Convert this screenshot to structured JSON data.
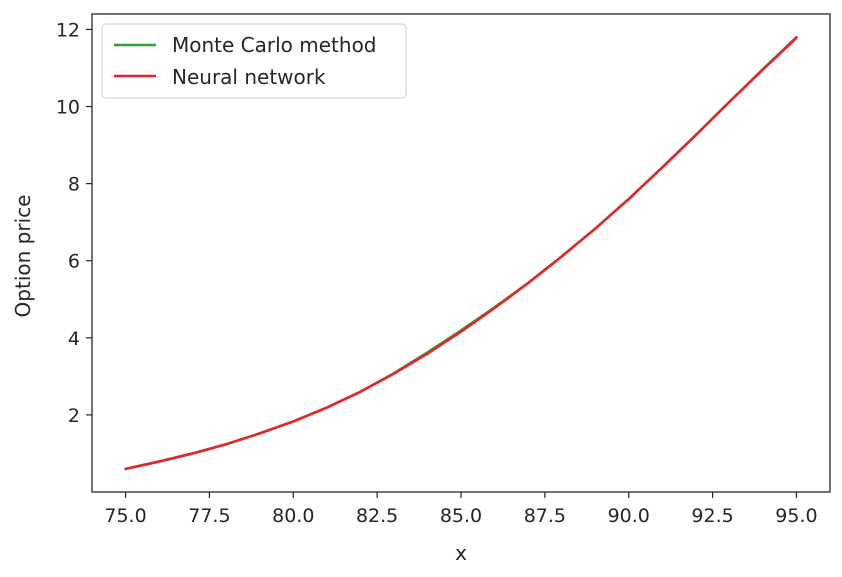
{
  "chart_data": {
    "type": "line",
    "title": "",
    "xlabel": "x",
    "ylabel": "Option price",
    "xlim": [
      74.0,
      96.0
    ],
    "ylim": [
      0.0,
      12.4
    ],
    "xticks": [
      75.0,
      77.5,
      80.0,
      82.5,
      85.0,
      87.5,
      90.0,
      92.5,
      95.0
    ],
    "xtick_labels": [
      "75.0",
      "77.5",
      "80.0",
      "82.5",
      "85.0",
      "87.5",
      "90.0",
      "92.5",
      "95.0"
    ],
    "yticks": [
      2,
      4,
      6,
      8,
      10,
      12
    ],
    "ytick_labels": [
      "2",
      "4",
      "6",
      "8",
      "10",
      "12"
    ],
    "grid": false,
    "legend_position": "top-left",
    "series": [
      {
        "name": "Monte Carlo method",
        "color": "#2ca02c",
        "x": [
          75.0,
          76.0,
          77.0,
          78.0,
          79.0,
          80.0,
          81.0,
          82.0,
          83.0,
          84.0,
          85.0,
          86.0,
          87.0,
          88.0,
          89.0,
          90.0,
          91.0,
          92.0,
          93.0,
          94.0,
          95.0
        ],
        "y": [
          0.6,
          0.79,
          1.0,
          1.24,
          1.52,
          1.83,
          2.19,
          2.6,
          3.08,
          3.62,
          4.19,
          4.79,
          5.42,
          6.11,
          6.83,
          7.6,
          8.42,
          9.26,
          10.12,
          10.97,
          11.8
        ]
      },
      {
        "name": "Neural network",
        "color": "#e8262a",
        "x": [
          75.0,
          76.0,
          77.0,
          78.0,
          79.0,
          80.0,
          81.0,
          82.0,
          83.0,
          84.0,
          85.0,
          86.0,
          87.0,
          88.0,
          89.0,
          90.0,
          91.0,
          92.0,
          93.0,
          94.0,
          95.0
        ],
        "y": [
          0.6,
          0.79,
          1.0,
          1.24,
          1.52,
          1.83,
          2.19,
          2.6,
          3.07,
          3.59,
          4.16,
          4.77,
          5.42,
          6.11,
          6.83,
          7.6,
          8.42,
          9.26,
          10.12,
          10.96,
          11.78
        ]
      }
    ]
  }
}
